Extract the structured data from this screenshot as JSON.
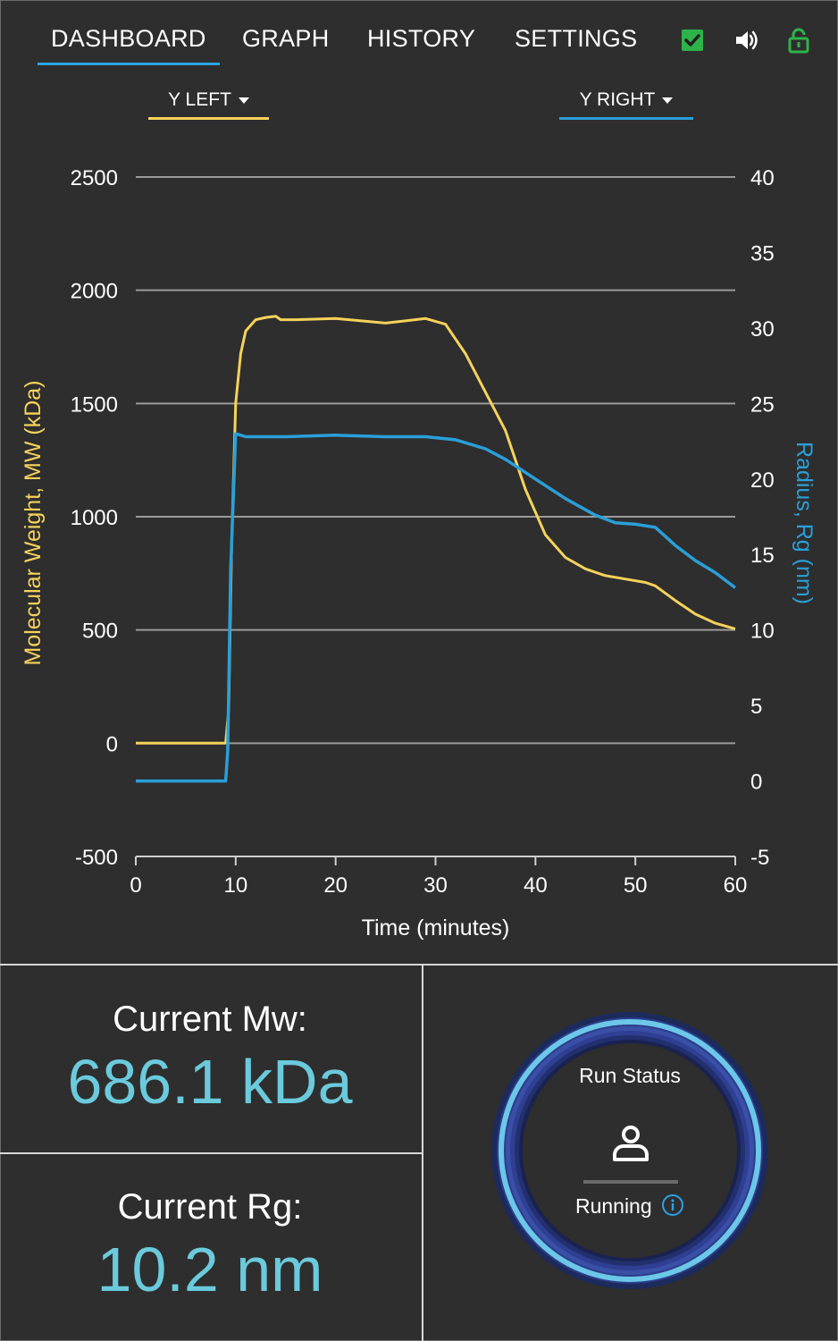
{
  "nav": {
    "tabs": [
      {
        "label": "DASHBOARD",
        "active": true
      },
      {
        "label": "GRAPH",
        "active": false
      },
      {
        "label": "HISTORY",
        "active": false
      },
      {
        "label": "SETTINGS",
        "active": false
      }
    ],
    "icons": [
      "checkbox-checked-icon",
      "speaker-icon",
      "unlock-icon"
    ],
    "colors": {
      "check": "#2db34a",
      "lock": "#2db34a",
      "underline": "#2aa3e6"
    }
  },
  "axis_selectors": {
    "left_label": "Y LEFT",
    "right_label": "Y RIGHT",
    "left_color": "#f5d35a",
    "right_color": "#2a9fd8"
  },
  "chart_data": {
    "type": "line",
    "xlabel": "Time (minutes)",
    "ylabel_left": "Molecular Weight, MW (kDa)",
    "ylabel_right": "Radius, Rg (nm)",
    "xlim": [
      0,
      60
    ],
    "xticks": [
      0,
      10,
      20,
      30,
      40,
      50,
      60
    ],
    "ylim_left": [
      -500,
      2500
    ],
    "yticks_left": [
      -500,
      0,
      500,
      1000,
      1500,
      2000,
      2500
    ],
    "ylim_right": [
      -5,
      40
    ],
    "yticks_right": [
      -5,
      0,
      5,
      10,
      15,
      20,
      25,
      30,
      35,
      40
    ],
    "grid": true,
    "series": [
      {
        "name": "Molecular Weight, MW (kDa)",
        "axis": "left",
        "color": "#f5d35a",
        "x": [
          0,
          9,
          9.3,
          9.6,
          10,
          10.5,
          11,
          12,
          13,
          14,
          14.5,
          16,
          20,
          25,
          27,
          29,
          31,
          33,
          35,
          37,
          39,
          41,
          43,
          45,
          47,
          49,
          51,
          52,
          54,
          56,
          58,
          60
        ],
        "y": [
          0,
          0,
          150,
          900,
          1500,
          1720,
          1820,
          1870,
          1880,
          1885,
          1870,
          1870,
          1875,
          1855,
          1865,
          1875,
          1850,
          1720,
          1550,
          1380,
          1120,
          920,
          820,
          770,
          740,
          725,
          710,
          695,
          630,
          570,
          530,
          505
        ]
      },
      {
        "name": "Radius, Rg (nm)",
        "axis": "right",
        "color": "#2a9fd8",
        "x": [
          0,
          9,
          9.2,
          9.5,
          10,
          11,
          15,
          20,
          25,
          29,
          32,
          35,
          37,
          40,
          43,
          46,
          48,
          50,
          52,
          54,
          56,
          58,
          60
        ],
        "y": [
          0,
          0,
          2,
          14,
          23,
          22.8,
          22.8,
          22.9,
          22.8,
          22.8,
          22.6,
          22,
          21.3,
          20,
          18.7,
          17.6,
          17.1,
          17,
          16.8,
          15.6,
          14.6,
          13.8,
          12.8
        ]
      }
    ]
  },
  "metrics": {
    "mw_label": "Current Mw:",
    "mw_value": "686.1 kDa",
    "rg_label": "Current Rg:",
    "rg_value": "10.2 nm",
    "value_color": "#6bcadc"
  },
  "status": {
    "title": "Run Status",
    "state": "Running",
    "icons": [
      "user-icon",
      "info-icon"
    ],
    "ring_color": "#6cc7e8"
  }
}
